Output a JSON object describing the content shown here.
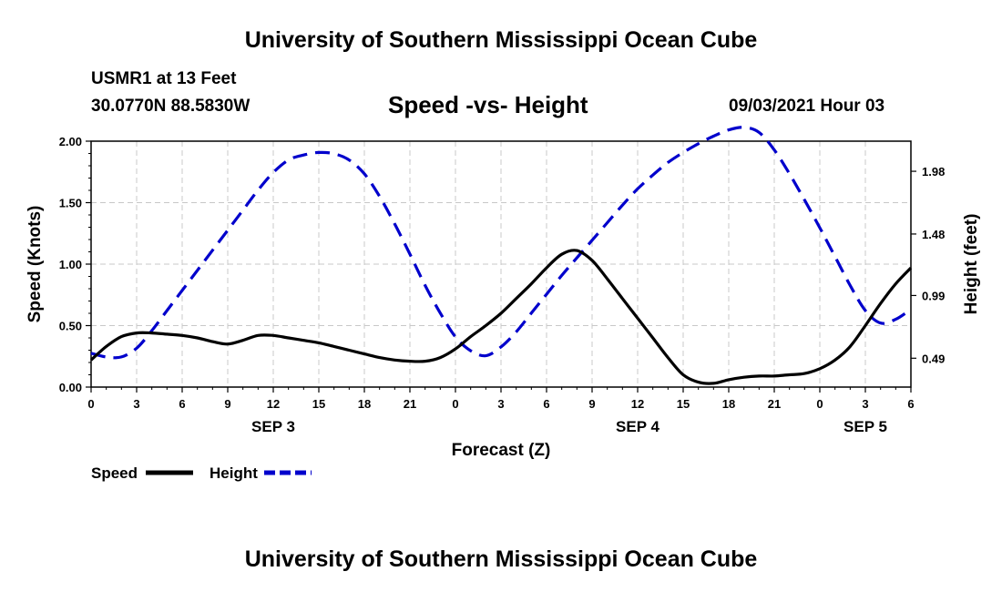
{
  "header": {
    "title": "University of Southern Mississippi Ocean Cube",
    "station": "USMR1 at 13 Feet",
    "coords": "30.0770N  88.5830W",
    "subtitle": "Speed -vs- Height",
    "datetime": "09/03/2021 Hour 03"
  },
  "footer": {
    "title": "University of Southern Mississippi Ocean Cube"
  },
  "chart_data": {
    "type": "line",
    "title": "Speed -vs- Height",
    "xlabel": "Forecast (Z)",
    "ylabel": "Speed (Knots)",
    "y2label": "Height (feet)",
    "xlim": [
      0,
      54
    ],
    "ylim": [
      0,
      2.0
    ],
    "y2lim": [
      0.26,
      2.22
    ],
    "x_ticks": [
      0,
      3,
      6,
      9,
      12,
      15,
      18,
      21,
      24,
      27,
      30,
      33,
      36,
      39,
      42,
      45,
      48,
      51,
      54
    ],
    "x_tick_labels": [
      "0",
      "3",
      "6",
      "9",
      "12",
      "15",
      "18",
      "21",
      "0",
      "3",
      "6",
      "9",
      "12",
      "15",
      "18",
      "21",
      "0",
      "3",
      "6"
    ],
    "day_labels": [
      {
        "x": 12,
        "label": "SEP 3"
      },
      {
        "x": 36,
        "label": "SEP 4"
      },
      {
        "x": 51,
        "label": "SEP 5"
      }
    ],
    "y_ticks": [
      0,
      0.5,
      1.0,
      1.5,
      2.0
    ],
    "y_tick_labels": [
      "0.00",
      "0.50",
      "1.00",
      "1.50",
      "2.00"
    ],
    "y2_ticks": [
      0.49,
      0.99,
      1.48,
      1.98
    ],
    "y2_tick_labels": [
      "0.49",
      "0.99",
      "1.48",
      "1.98"
    ],
    "grid": true,
    "series": [
      {
        "name": "Speed",
        "axis": "left",
        "color": "#000000",
        "style": "solid",
        "x": [
          0,
          1,
          2,
          3,
          4,
          5,
          6,
          7,
          8,
          9,
          10,
          11,
          12,
          13,
          14,
          15,
          16,
          17,
          18,
          19,
          20,
          21,
          22,
          23,
          24,
          25,
          26,
          27,
          28,
          29,
          30,
          31,
          32,
          33,
          34,
          35,
          36,
          37,
          38,
          39,
          40,
          41,
          42,
          43,
          44,
          45,
          46,
          47,
          48,
          49,
          50,
          51,
          52,
          53,
          54
        ],
        "values": [
          0.22,
          0.33,
          0.41,
          0.44,
          0.44,
          0.43,
          0.42,
          0.4,
          0.37,
          0.35,
          0.38,
          0.42,
          0.42,
          0.4,
          0.38,
          0.36,
          0.33,
          0.3,
          0.27,
          0.24,
          0.22,
          0.21,
          0.21,
          0.24,
          0.31,
          0.41,
          0.5,
          0.6,
          0.72,
          0.84,
          0.97,
          1.08,
          1.11,
          1.03,
          0.88,
          0.72,
          0.56,
          0.4,
          0.24,
          0.1,
          0.04,
          0.03,
          0.06,
          0.08,
          0.09,
          0.09,
          0.1,
          0.11,
          0.15,
          0.22,
          0.33,
          0.5,
          0.68,
          0.84,
          0.97
        ]
      },
      {
        "name": "Height",
        "axis": "right",
        "color": "#0000cc",
        "style": "dashed",
        "x": [
          0,
          1,
          2,
          3,
          4,
          5,
          6,
          7,
          8,
          9,
          10,
          11,
          12,
          13,
          14,
          15,
          16,
          17,
          18,
          19,
          20,
          21,
          22,
          23,
          24,
          25,
          26,
          27,
          28,
          29,
          30,
          31,
          32,
          33,
          34,
          35,
          36,
          37,
          38,
          39,
          40,
          41,
          42,
          43,
          44,
          45,
          46,
          47,
          48,
          49,
          50,
          51,
          52,
          53,
          54
        ],
        "values": [
          0.53,
          0.5,
          0.5,
          0.57,
          0.71,
          0.87,
          1.03,
          1.19,
          1.35,
          1.51,
          1.67,
          1.83,
          1.97,
          2.07,
          2.11,
          2.13,
          2.12,
          2.07,
          1.96,
          1.78,
          1.56,
          1.32,
          1.07,
          0.85,
          0.66,
          0.55,
          0.51,
          0.58,
          0.7,
          0.85,
          1.0,
          1.15,
          1.29,
          1.43,
          1.57,
          1.71,
          1.84,
          1.95,
          2.05,
          2.13,
          2.2,
          2.26,
          2.31,
          2.33,
          2.29,
          2.15,
          1.96,
          1.75,
          1.53,
          1.3,
          1.07,
          0.87,
          0.77,
          0.8,
          0.88
        ]
      }
    ],
    "legend": [
      {
        "label": "Speed",
        "color": "#000000",
        "style": "solid"
      },
      {
        "label": "Height",
        "color": "#0000cc",
        "style": "dashed"
      }
    ]
  }
}
